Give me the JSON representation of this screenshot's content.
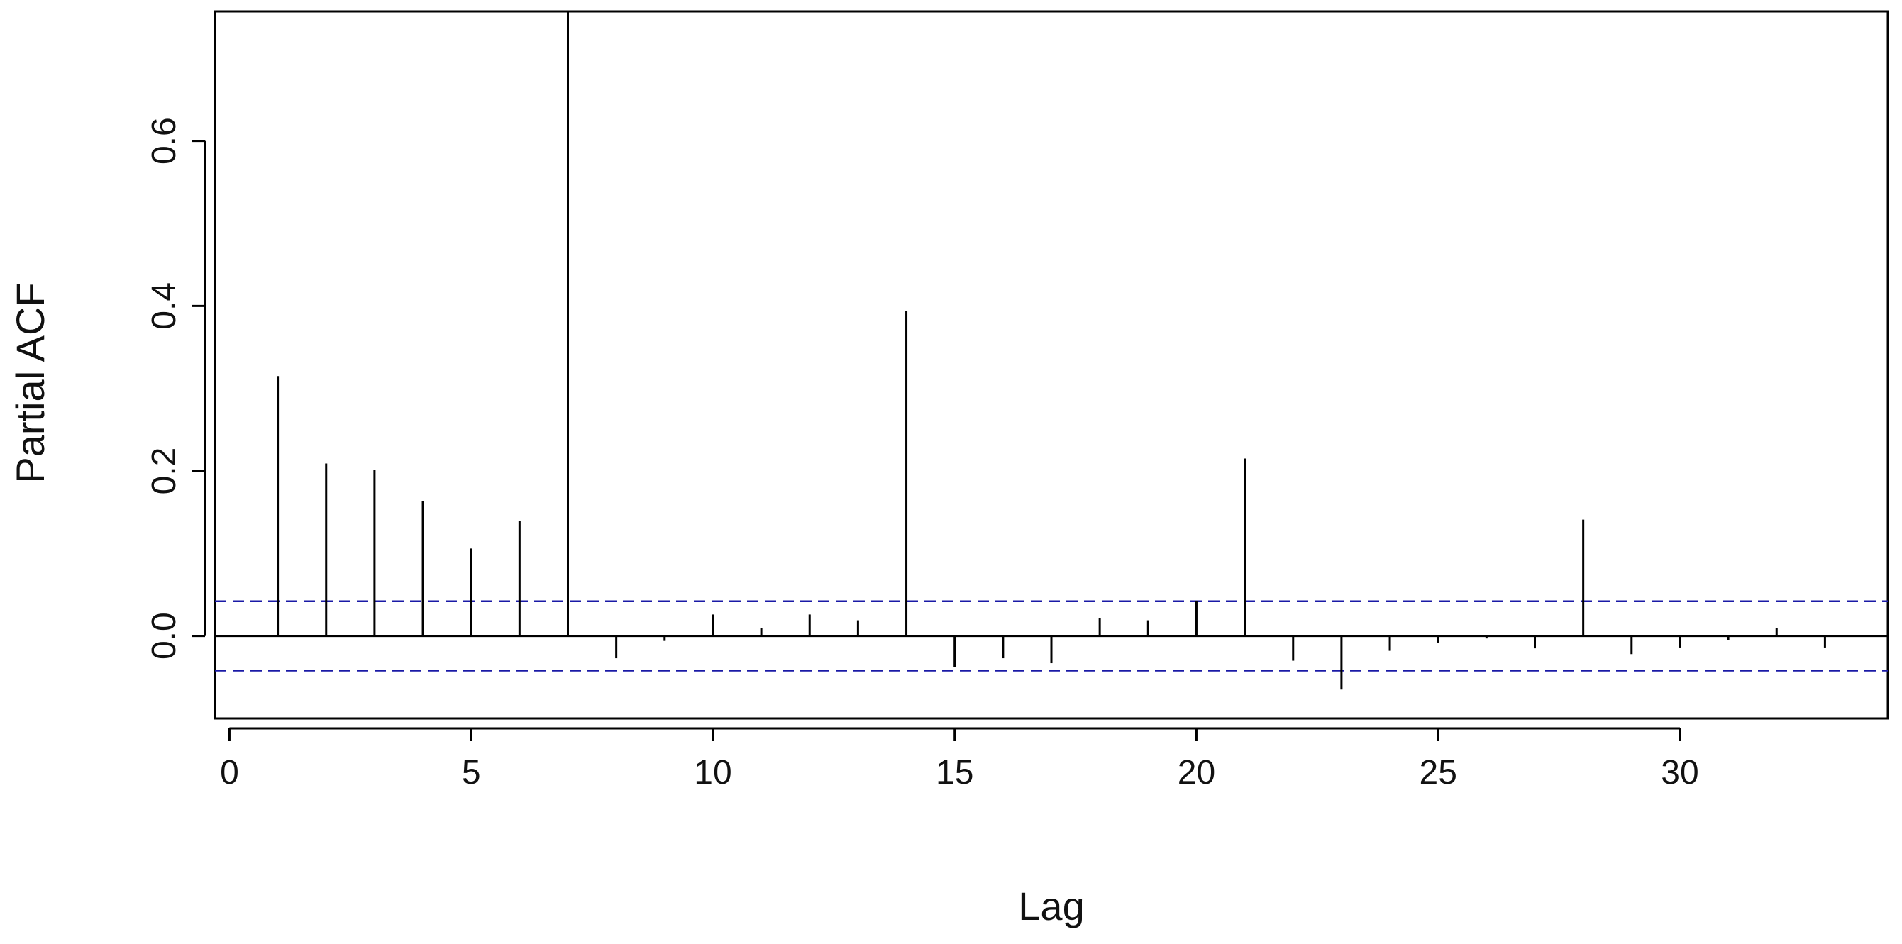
{
  "chart_data": {
    "type": "bar",
    "subtype": "pacf-lollipop",
    "xlabel": "Lag",
    "ylabel": "Partial ACF",
    "xlim": [
      -0.3,
      34.3
    ],
    "ylim": [
      -0.1,
      0.757
    ],
    "x_ticks": [
      0,
      5,
      10,
      15,
      20,
      25,
      30
    ],
    "x_tick_labels": [
      "0",
      "5",
      "10",
      "15",
      "20",
      "25",
      "30"
    ],
    "y_ticks": [
      0.0,
      0.2,
      0.4,
      0.6
    ],
    "y_tick_labels": [
      "0.0",
      "0.2",
      "0.4",
      "0.6"
    ],
    "lags": [
      1,
      2,
      3,
      4,
      5,
      6,
      7,
      8,
      9,
      10,
      11,
      12,
      13,
      14,
      15,
      16,
      17,
      18,
      19,
      20,
      21,
      22,
      23,
      24,
      25,
      26,
      27,
      28,
      29,
      30,
      31,
      32,
      33
    ],
    "values": [
      0.315,
      0.209,
      0.201,
      0.163,
      0.106,
      0.139,
      0.757,
      -0.027,
      -0.006,
      0.026,
      0.01,
      0.026,
      0.019,
      0.394,
      -0.038,
      -0.027,
      -0.033,
      0.022,
      0.019,
      0.042,
      0.215,
      -0.03,
      -0.065,
      -0.018,
      -0.008,
      -0.003,
      -0.015,
      0.141,
      -0.022,
      -0.014,
      -0.005,
      0.01,
      -0.014
    ],
    "confidence_band": {
      "upper": 0.042,
      "lower": -0.042,
      "line_style": "dashed"
    },
    "colors": {
      "bars": "#000000",
      "band": "#1a1aa6",
      "zero_line": "#000000",
      "frame": "#000000"
    },
    "grid": false,
    "legend": "none"
  }
}
